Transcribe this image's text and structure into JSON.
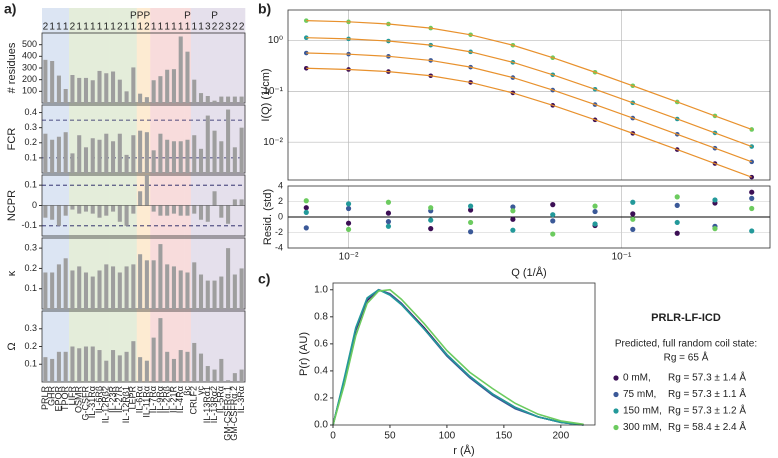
{
  "panel_labels": [
    "a)",
    "b)",
    "c)"
  ],
  "chart_data": [
    {
      "type": "bar",
      "categories": [
        "PRLR",
        "GHR",
        "EPOR",
        "TPOR",
        "LIFR",
        "OSMR",
        "G-CSFR",
        "IL-31Rα",
        "IL-6Rβ",
        "IL-12Rβ2",
        "IL-23R",
        "IL-27R",
        "IL-12Rβ1",
        "LEPR",
        "IL-6Rα",
        "IL-11Rα",
        "IL-7Rα",
        "IL-9Rα",
        "IL-2Rβ",
        "IL-21R",
        "IL-4Rα",
        "βc",
        "CRLF2",
        "γc",
        "IL-13Rα1",
        "IL-13Rα2",
        "IL-5Rα",
        "GM-CSFRα.1",
        "GM-CSFRα.2",
        "IL-3Rα"
      ],
      "top_labels": [
        2,
        1,
        1,
        1,
        2,
        1,
        1,
        1,
        1,
        1,
        1,
        2,
        1,
        1,
        1,
        2,
        1,
        1,
        1,
        1,
        1,
        1,
        1,
        1,
        3,
        2,
        2,
        3,
        2,
        2
      ],
      "top_marks": [
        null,
        null,
        null,
        null,
        null,
        null,
        null,
        null,
        null,
        null,
        null,
        null,
        null,
        "P",
        "P",
        "P",
        null,
        null,
        null,
        null,
        null,
        "P",
        null,
        null,
        null,
        "P",
        null,
        null,
        null,
        null
      ],
      "band_colors": [
        "#dce5f3",
        "#dce5f3",
        "#dce5f3",
        "#dce5f3",
        "#e4edda",
        "#e4edda",
        "#e4edda",
        "#e4edda",
        "#e4edda",
        "#e4edda",
        "#e4edda",
        "#e4edda",
        "#e4edda",
        "#e4edda",
        "#fdebd2",
        "#fdebd2",
        "#f8dcdc",
        "#f8dcdc",
        "#f8dcdc",
        "#f8dcdc",
        "#f8dcdc",
        "#f8dcdc",
        "#e5e0ec",
        "#e5e0ec",
        "#e5e0ec",
        "#e5e0ec",
        "#e5e0ec",
        "#e5e0ec",
        "#e5e0ec",
        "#e5e0ec"
      ],
      "color": "#9e9e9e",
      "panels": [
        {
          "ylabel": "# residues",
          "ylim": [
            0,
            600
          ],
          "yticks": [
            100,
            200,
            300,
            400,
            500
          ],
          "values": [
            370,
            360,
            235,
            120,
            240,
            215,
            215,
            195,
            275,
            255,
            270,
            200,
            100,
            305,
            80,
            50,
            195,
            230,
            285,
            290,
            570,
            440,
            200,
            85,
            60,
            20,
            55,
            55,
            55,
            55
          ]
        },
        {
          "ylabel": "FCR",
          "ylim": [
            0,
            0.45
          ],
          "yticks": [
            0.1,
            0.2,
            0.3,
            0.4
          ],
          "ref_lines": [
            0.1,
            0.35
          ],
          "values": [
            0.26,
            0.22,
            0.24,
            0.27,
            0.13,
            0.25,
            0.17,
            0.23,
            0.22,
            0.26,
            0.21,
            0.26,
            0.12,
            0.25,
            0.28,
            0.27,
            0.15,
            0.26,
            0.22,
            0.21,
            0.21,
            0.22,
            0.25,
            0.16,
            0.38,
            0.28,
            0.21,
            0.42,
            0.17,
            0.3
          ]
        },
        {
          "ylabel": "NCPR",
          "ylim": [
            -0.15,
            0.15
          ],
          "yticks": [
            -0.1,
            0,
            0.1
          ],
          "ref_lines": [
            -0.1,
            0.1
          ],
          "values": [
            -0.06,
            -0.07,
            -0.1,
            -0.05,
            -0.02,
            -0.04,
            -0.03,
            -0.04,
            -0.06,
            -0.05,
            -0.03,
            -0.08,
            -0.1,
            -0.04,
            0.07,
            0.15,
            -0.03,
            -0.05,
            -0.05,
            -0.04,
            -0.05,
            -0.05,
            -0.04,
            -0.07,
            -0.08,
            0.07,
            -0.06,
            -0.09,
            0.03,
            0.03
          ]
        },
        {
          "ylabel": "κ",
          "ylim": [
            0,
            0.35
          ],
          "yticks": [
            0.1,
            0.2,
            0.3
          ],
          "values": [
            0.18,
            0.18,
            0.22,
            0.25,
            0.19,
            0.21,
            0.18,
            0.16,
            0.19,
            0.22,
            0.21,
            0.18,
            0.21,
            0.22,
            0.27,
            0.24,
            0.24,
            0.32,
            0.22,
            0.21,
            0.19,
            0.18,
            0.23,
            0.17,
            0.14,
            0.14,
            0.16,
            0.3,
            0.17,
            0.2
          ]
        },
        {
          "ylabel": "Ω",
          "ylim": [
            0,
            0.4
          ],
          "yticks": [
            0.1,
            0.2,
            0.3
          ],
          "values": [
            0.14,
            0.13,
            0.17,
            0.17,
            0.2,
            0.19,
            0.2,
            0.2,
            0.18,
            0.12,
            0.18,
            0.15,
            0.17,
            0.23,
            0.14,
            0.12,
            0.25,
            0.36,
            0.17,
            0.13,
            0.18,
            0.17,
            0.22,
            0.16,
            0.09,
            0.07,
            0.13,
            0.01,
            0.05,
            0.07
          ]
        }
      ]
    },
    {
      "type": "line",
      "log_x": true,
      "log_y": true,
      "grid": true,
      "ylabel": "I(Q) (1/cm)",
      "fit_color": "#e8912d",
      "xlim": [
        0.006,
        0.35
      ],
      "ylim": [
        0.0018,
        4
      ],
      "yticks": [
        {
          "value": 0.01,
          "label": "10⁻²"
        },
        {
          "value": 0.1,
          "label": "10⁻¹"
        },
        {
          "value": 1,
          "label": "10⁰"
        }
      ],
      "x": [
        0.007,
        0.01,
        0.014,
        0.02,
        0.028,
        0.04,
        0.056,
        0.08,
        0.11,
        0.16,
        0.22,
        0.3
      ],
      "series": [
        {
          "color": "#3c0f55",
          "values": [
            0.285,
            0.27,
            0.245,
            0.203,
            0.15,
            0.0933,
            0.0531,
            0.0275,
            0.0149,
            0.00714,
            0.0038,
            0.00205
          ]
        },
        {
          "color": "#3b5998",
          "values": [
            0.569,
            0.54,
            0.49,
            0.407,
            0.3,
            0.187,
            0.106,
            0.0549,
            0.0298,
            0.0143,
            0.0076,
            0.0041
          ]
        },
        {
          "color": "#23999a",
          "values": [
            1.14,
            1.08,
            0.98,
            0.813,
            0.6,
            0.373,
            0.212,
            0.11,
            0.0595,
            0.0286,
            0.0152,
            0.0082
          ]
        },
        {
          "color": "#6ccb5f",
          "values": [
            2.47,
            2.34,
            2.12,
            1.76,
            1.3,
            0.809,
            0.46,
            0.238,
            0.129,
            0.0619,
            0.0329,
            0.0178
          ]
        }
      ]
    },
    {
      "type": "scatter",
      "log_x": true,
      "ylabel": "Resid. (std)",
      "xlabel": "Q (1/Å)",
      "xlim": [
        0.006,
        0.35
      ],
      "xticks": [
        {
          "value": 0.01,
          "label": "10⁻²"
        },
        {
          "value": 0.1,
          "label": "10⁻¹"
        }
      ],
      "ylim": [
        -4,
        4
      ],
      "yticks": [
        -4,
        -2,
        0,
        2,
        4
      ],
      "x": [
        0.007,
        0.01,
        0.014,
        0.02,
        0.028,
        0.04,
        0.056,
        0.08,
        0.11,
        0.16,
        0.22,
        0.3
      ],
      "series": [
        {
          "color": "#3c0f55",
          "values": [
            1.2,
            -0.8,
            0.5,
            -1.5,
            0.9,
            -0.3,
            1.6,
            -1.1,
            0.4,
            -2.1,
            1.8,
            3.2
          ]
        },
        {
          "color": "#3b5998",
          "values": [
            -1.4,
            1.1,
            -0.6,
            0.8,
            -1.9,
            1.3,
            -0.5,
            0.7,
            -1.6,
            1.5,
            -1.2,
            2.4
          ]
        },
        {
          "color": "#23999a",
          "values": [
            0.6,
            1.7,
            -1.2,
            -0.4,
            1.4,
            -1.7,
            0.3,
            -0.9,
            1.9,
            -0.7,
            2.2,
            -1.8
          ]
        },
        {
          "color": "#6ccb5f",
          "values": [
            2.1,
            -1.6,
            1.9,
            1.2,
            -0.7,
            0.8,
            -2.2,
            1.4,
            -0.3,
            2.6,
            -1.5,
            1.1
          ]
        }
      ]
    },
    {
      "type": "line",
      "title": "PRLR-LF-ICD",
      "subtitle": "Predicted, full random coil state:",
      "annotation": "Rg = 65 Å",
      "ylabel": "P(r) (AU)",
      "xlabel": "r (Å)",
      "xlim": [
        0,
        230
      ],
      "xticks": [
        0,
        50,
        100,
        150,
        200
      ],
      "ylim": [
        0,
        1.05
      ],
      "yticks": [
        {
          "value": 0,
          "label": "0.0"
        },
        {
          "value": 0.2,
          "label": "0.2"
        },
        {
          "value": 0.4,
          "label": "0.4"
        },
        {
          "value": 0.6,
          "label": "0.6"
        },
        {
          "value": 0.8,
          "label": "0.8"
        },
        {
          "value": 1,
          "label": "1.0"
        }
      ],
      "x": [
        0,
        10,
        20,
        30,
        40,
        50,
        60,
        80,
        100,
        120,
        140,
        160,
        180,
        200,
        220
      ],
      "series": [
        {
          "name": "0 mM,",
          "label": "Rg = 57.3 ± 1.4 Å",
          "color": "#3c0f55",
          "values": [
            0,
            0.33,
            0.7,
            0.92,
            1.0,
            0.97,
            0.9,
            0.72,
            0.52,
            0.36,
            0.23,
            0.13,
            0.06,
            0.02,
            0
          ]
        },
        {
          "name": "75 mM,",
          "label": "Rg = 57.3 ± 1.1 Å",
          "color": "#3b5998",
          "values": [
            0,
            0.34,
            0.71,
            0.93,
            1.0,
            0.97,
            0.9,
            0.71,
            0.51,
            0.35,
            0.22,
            0.12,
            0.06,
            0.02,
            0
          ]
        },
        {
          "name": "150 mM,",
          "label": "Rg = 57.3 ± 1.2 Å",
          "color": "#23999a",
          "values": [
            0,
            0.35,
            0.72,
            0.94,
            1.0,
            0.96,
            0.89,
            0.71,
            0.52,
            0.36,
            0.23,
            0.13,
            0.06,
            0.02,
            0
          ]
        },
        {
          "name": "300 mM,",
          "label": "Rg = 58.4 ± 2.4 Å",
          "color": "#6ccb5f",
          "values": [
            0,
            0.3,
            0.66,
            0.9,
            0.99,
            1.0,
            0.93,
            0.75,
            0.55,
            0.39,
            0.27,
            0.16,
            0.08,
            0.03,
            0.005
          ]
        }
      ]
    }
  ]
}
